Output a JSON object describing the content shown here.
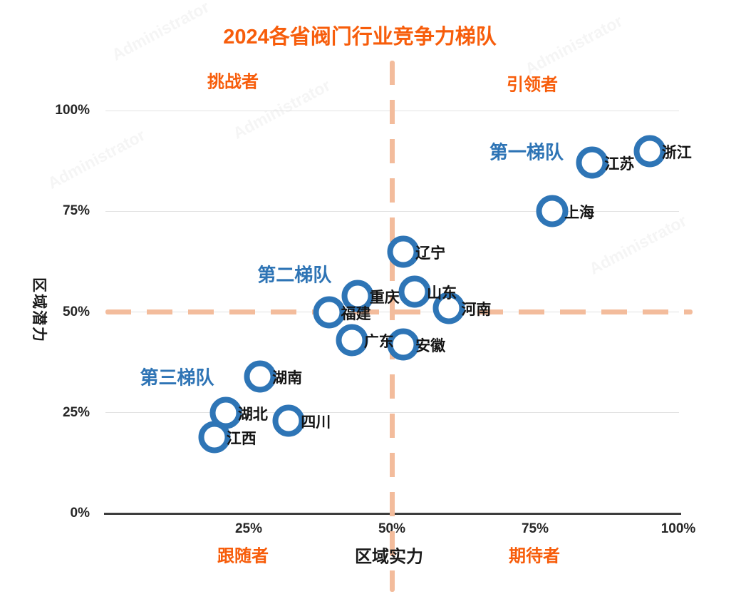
{
  "watermark_text": "Administrator",
  "colors": {
    "accent_orange": "#F75D0B",
    "tier_blue": "#2E74B5",
    "marker_blue": "#2E75B6",
    "ref_dash_peach": "#F3BC9C",
    "gridline_gray": "#E2E2E2",
    "axis_dark": "#3D3D3D",
    "text_black": "#141414"
  },
  "chart_data": {
    "type": "scatter",
    "title": "2024各省阀门行业竞争力梯队",
    "xlabel": "区域实力",
    "ylabel": "区域潜力",
    "xlim": [
      0,
      100
    ],
    "ylim": [
      0,
      100
    ],
    "grid": "horizontal gridlines at 25/50/75/100, bottom axis line only",
    "legend": "none",
    "x_ticks": [
      {
        "label": "25%",
        "v": 25
      },
      {
        "label": "50%",
        "v": 50
      },
      {
        "label": "75%",
        "v": 75
      },
      {
        "label": "100%",
        "v": 100
      }
    ],
    "y_ticks": [
      {
        "label": "0%",
        "v": 0
      },
      {
        "label": "25%",
        "v": 25
      },
      {
        "label": "50%",
        "v": 50
      },
      {
        "label": "75%",
        "v": 75
      },
      {
        "label": "100%",
        "v": 100
      }
    ],
    "reference_lines": {
      "x": 50,
      "y": 50
    },
    "quadrants": {
      "top_left": "挑战者",
      "top_right": "引领者",
      "bottom_left": "跟随者",
      "bottom_right": "期待者"
    },
    "tiers": [
      {
        "label": "第一梯队",
        "x": 73.5,
        "y": 90
      },
      {
        "label": "第二梯队",
        "x": 33,
        "y": 59.5
      },
      {
        "label": "第三梯队",
        "x": 12.5,
        "y": 34
      }
    ],
    "points": [
      {
        "name": "浙江",
        "x": 95,
        "y": 90
      },
      {
        "name": "江苏",
        "x": 85,
        "y": 87
      },
      {
        "name": "上海",
        "x": 78,
        "y": 75
      },
      {
        "name": "辽宁",
        "x": 52,
        "y": 65
      },
      {
        "name": "山东",
        "x": 54,
        "y": 55
      },
      {
        "name": "重庆",
        "x": 44,
        "y": 54
      },
      {
        "name": "河南",
        "x": 60,
        "y": 51
      },
      {
        "name": "福建",
        "x": 39,
        "y": 50
      },
      {
        "name": "广东",
        "x": 43,
        "y": 43
      },
      {
        "name": "安徽",
        "x": 52,
        "y": 42
      },
      {
        "name": "湖南",
        "x": 27,
        "y": 34
      },
      {
        "name": "湖北",
        "x": 21,
        "y": 25
      },
      {
        "name": "四川",
        "x": 32,
        "y": 23
      },
      {
        "name": "江西",
        "x": 19,
        "y": 19
      }
    ]
  }
}
